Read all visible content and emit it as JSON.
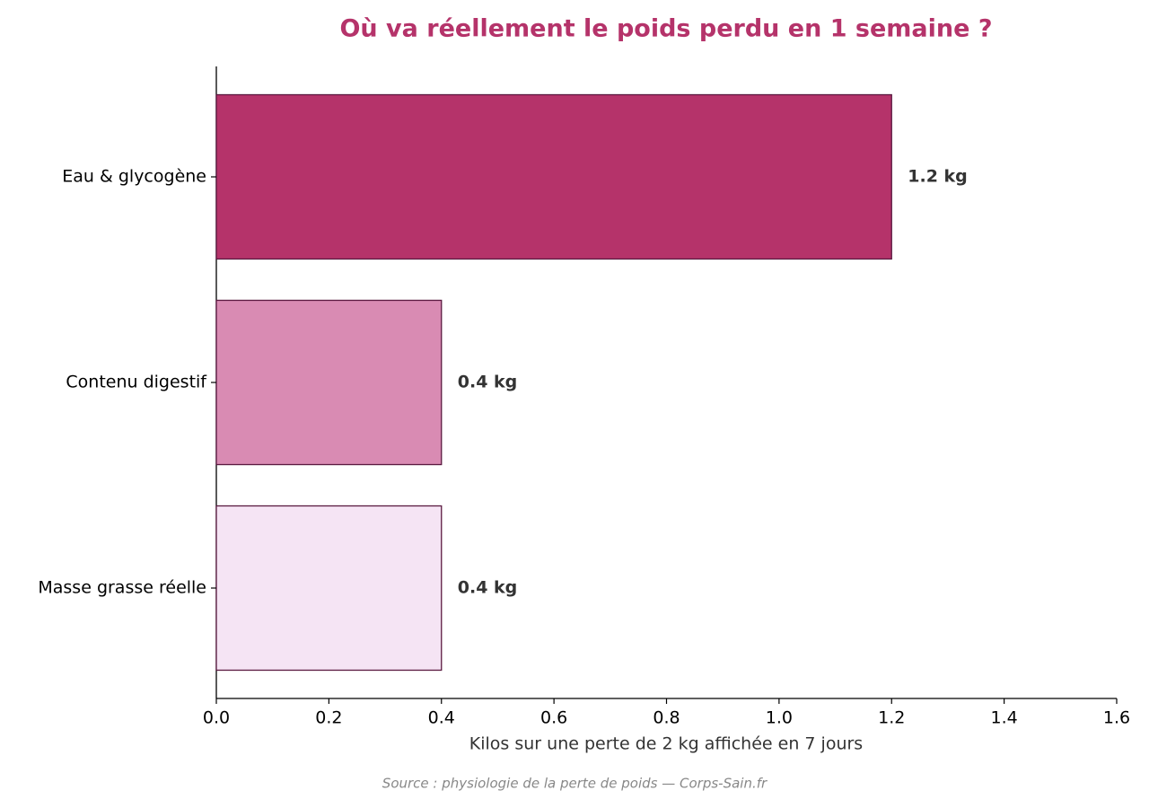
{
  "chart_data": {
    "type": "hbar",
    "title": "Où va réellement le poids perdu en 1 semaine ?",
    "categories": [
      "Eau & glycogène",
      "Contenu digestif",
      "Masse grasse réelle"
    ],
    "values": [
      1.2,
      0.4,
      0.4
    ],
    "value_labels": [
      "1.2 kg",
      "0.4 kg",
      "0.4 kg"
    ],
    "colors": [
      "#b5336a",
      "#d98bb3",
      "#f5e4f4"
    ],
    "edge_color": "#5a1a40",
    "xlabel": "Kilos sur une perte de 2 kg affichée en 7 jours",
    "xlim": [
      0,
      1.6
    ],
    "xticks": [
      {
        "value": 0,
        "label": "0.0"
      },
      0.2,
      0.4,
      0.6,
      0.8,
      {
        "value": 1,
        "label": "1.0"
      },
      1.2,
      1.4,
      1.6
    ],
    "source": "Source : physiologie de la perte de poids — Corps-Sain.fr"
  }
}
